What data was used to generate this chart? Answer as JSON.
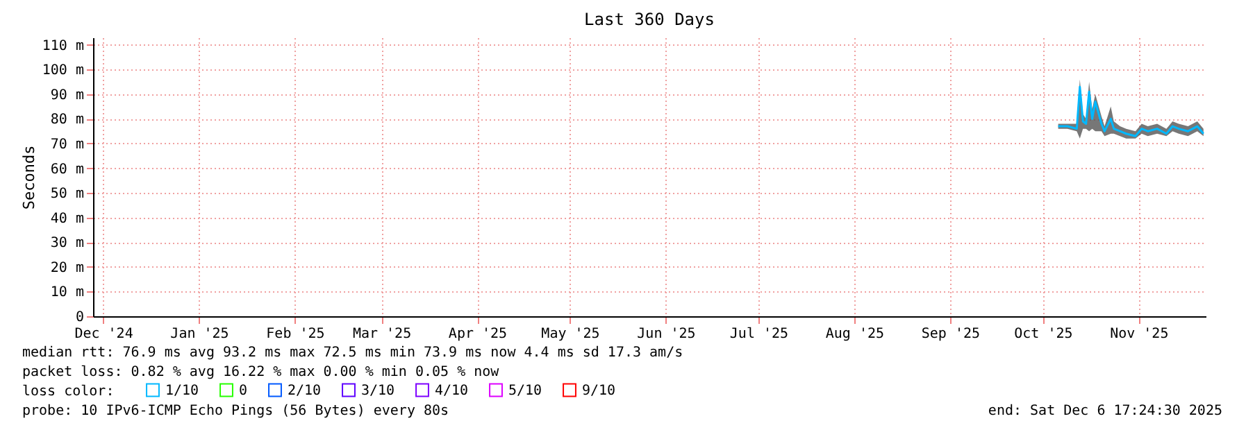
{
  "chart_data": {
    "type": "line",
    "title": "Last 360 Days",
    "ylabel": "Seconds",
    "x": [
      "2025-10-20",
      "2025-10-23",
      "2025-10-26",
      "2025-10-27",
      "2025-10-28",
      "2025-10-29",
      "2025-10-30",
      "2025-10-31",
      "2025-11-01",
      "2025-11-03",
      "2025-11-04",
      "2025-11-06",
      "2025-11-07",
      "2025-11-09",
      "2025-11-11",
      "2025-11-14",
      "2025-11-16",
      "2025-11-18",
      "2025-11-21",
      "2025-11-24",
      "2025-11-26",
      "2025-11-28",
      "2025-12-01",
      "2025-12-04",
      "2025-12-06"
    ],
    "series": [
      {
        "name": "1/10",
        "color": "#00b8ff",
        "values": [
          77,
          77,
          76,
          93,
          79,
          78,
          91,
          80,
          87,
          78,
          75,
          80,
          76,
          75,
          74,
          73,
          76,
          75,
          76,
          74,
          77,
          76,
          75,
          77,
          74
        ],
        "lower": [
          76,
          76,
          75,
          72,
          76,
          76,
          75,
          76,
          75,
          75,
          73,
          74,
          74,
          73,
          72,
          72,
          74,
          73,
          74,
          73,
          75,
          74,
          73,
          75,
          73
        ],
        "upper": [
          78,
          78,
          78,
          96,
          82,
          80,
          95,
          84,
          90,
          81,
          77,
          85,
          79,
          77,
          76,
          75,
          78,
          77,
          78,
          76,
          79,
          78,
          77,
          79,
          76
        ]
      },
      {
        "name": "0",
        "color": "#26ff00",
        "values": [
          null,
          null,
          null,
          null,
          null,
          null,
          null,
          null,
          null,
          null,
          null,
          null,
          null,
          null,
          null,
          null,
          null,
          null,
          null,
          null,
          null,
          null,
          null,
          null,
          null
        ]
      },
      {
        "name": "2/10",
        "color": "#0059ff",
        "values": [
          null,
          null,
          null,
          null,
          null,
          null,
          null,
          null,
          null,
          null,
          null,
          null,
          null,
          null,
          null,
          null,
          null,
          null,
          null,
          null,
          null,
          null,
          null,
          null,
          null
        ]
      },
      {
        "name": "3/10",
        "color": "#5e00ff",
        "values": [
          null,
          null,
          null,
          null,
          null,
          null,
          null,
          null,
          null,
          null,
          null,
          null,
          null,
          null,
          null,
          null,
          null,
          null,
          null,
          null,
          null,
          null,
          null,
          null,
          null
        ]
      },
      {
        "name": "4/10",
        "color": "#7e00ff",
        "values": [
          null,
          null,
          null,
          null,
          null,
          null,
          null,
          null,
          null,
          null,
          null,
          null,
          null,
          null,
          null,
          null,
          null,
          null,
          null,
          null,
          null,
          null,
          null,
          null,
          null
        ]
      },
      {
        "name": "5/10",
        "color": "#dd00ff",
        "values": [
          null,
          null,
          null,
          null,
          null,
          null,
          null,
          null,
          null,
          null,
          null,
          null,
          null,
          null,
          null,
          null,
          null,
          null,
          null,
          null,
          null,
          null,
          null,
          null,
          null
        ]
      },
      {
        "name": "9/10",
        "color": "#ff0000",
        "values": [
          null,
          null,
          null,
          null,
          null,
          null,
          null,
          null,
          null,
          null,
          null,
          null,
          null,
          null,
          null,
          null,
          null,
          null,
          null,
          null,
          null,
          null,
          null,
          null,
          null
        ]
      }
    ],
    "legend_title": "loss color:",
    "legend": "bottom left",
    "xlim": [
      "2024-12-11T17:24",
      "2025-12-06T17:24"
    ],
    "xticks": [
      {
        "value": "2024-12-15",
        "label": "Dec '24"
      },
      {
        "value": "2025-01-15",
        "label": "Jan '25"
      },
      {
        "value": "2025-02-15",
        "label": "Feb '25"
      },
      {
        "value": "2025-03-15",
        "label": "Mar '25"
      },
      {
        "value": "2025-04-15",
        "label": "Apr '25"
      },
      {
        "value": "2025-05-15",
        "label": "May '25"
      },
      {
        "value": "2025-06-15",
        "label": "Jun '25"
      },
      {
        "value": "2025-07-15",
        "label": "Jul '25"
      },
      {
        "value": "2025-08-15",
        "label": "Aug '25"
      },
      {
        "value": "2025-09-15",
        "label": "Sep '25"
      },
      {
        "value": "2025-10-15",
        "label": "Oct '25"
      },
      {
        "value": "2025-11-15",
        "label": "Nov '25"
      }
    ],
    "ylim": [
      0,
      113
    ],
    "yticks": [
      0,
      {
        "value": 10,
        "label": "10 m"
      },
      {
        "value": 20,
        "label": "20 m"
      },
      {
        "value": 30,
        "label": "30 m"
      },
      {
        "value": 40,
        "label": "40 m"
      },
      {
        "value": 50,
        "label": "50 m"
      },
      {
        "value": 60,
        "label": "60 m"
      },
      {
        "value": 70,
        "label": "70 m"
      },
      {
        "value": 80,
        "label": "80 m"
      },
      {
        "value": 90,
        "label": "90 m"
      },
      {
        "value": 100,
        "label": "100 m"
      },
      {
        "value": 110,
        "label": "110 m"
      }
    ],
    "grid": true,
    "annotations": [
      "median rtt:  76.9 ms avg  93.2 ms max  72.5 ms min  73.9 ms now  4.4 ms sd  17.3   am/s",
      "packet loss: 0.82 % avg  16.22 % max  0.00 % min  0.05 % now",
      "probe:       10 IPv6-ICMP Echo Pings (56 Bytes) every 80s",
      "end: Sat Dec  6 17:24:30 2025"
    ]
  }
}
